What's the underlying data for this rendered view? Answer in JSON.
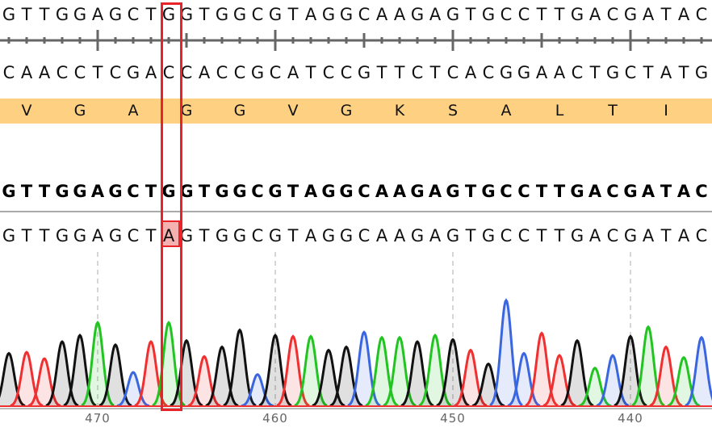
{
  "reference": {
    "forward": "GTTGGAGCTGGTGGCGTAGGCAAGAGTGCCTTGACGATAC",
    "reverse_complement": "CAACCTCGACCACCGCATCCGTTCTCACGGAACTGCTATG",
    "translation": [
      "V",
      "G",
      "A",
      "G",
      "G",
      "V",
      "G",
      "K",
      "S",
      "A",
      "L",
      "T",
      "I"
    ],
    "translation_band_color": "#fdd082"
  },
  "consensus": "GTTGGAGCTGGTGGCGTAGGCAAGAGTGCCTTGACGATAC",
  "read": {
    "sequence": "GTTGGAGCTAGTGGCGTAGGCAAGAGTGCCTTGACGATAC",
    "mismatch_index": 9,
    "mismatch_highlight_color": "#f5b0b0"
  },
  "selection_color": "#e8232a",
  "chart_data": {
    "type": "chromatogram",
    "base_colors": {
      "A": "#22c422",
      "C": "#3a66e0",
      "G": "#111111",
      "T": "#f03030"
    },
    "base_calls": "GTTGGAGCTAGTGGCGTAGGCAAGAGTGCCTTGACGATAC",
    "relative_peak_heights": [
      0.5,
      0.51,
      0.45,
      0.61,
      0.67,
      0.79,
      0.58,
      0.32,
      0.61,
      0.79,
      0.62,
      0.47,
      0.56,
      0.72,
      0.3,
      0.67,
      0.66,
      0.66,
      0.53,
      0.56,
      0.7,
      0.65,
      0.65,
      0.61,
      0.67,
      0.63,
      0.53,
      0.4,
      1.0,
      0.5,
      0.69,
      0.48,
      0.62,
      0.36,
      0.48,
      0.66,
      0.75,
      0.56,
      0.46,
      0.65
    ],
    "axis_ticks": [
      {
        "label": "470",
        "base_index": 5
      },
      {
        "label": "460",
        "base_index": 15
      },
      {
        "label": "450",
        "base_index": 25
      },
      {
        "label": "440",
        "base_index": 35
      }
    ]
  }
}
